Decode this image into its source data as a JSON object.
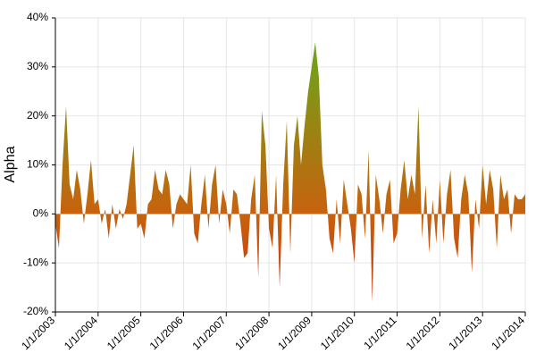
{
  "chart_data": {
    "type": "area",
    "y_label": "Alpha",
    "x": [
      2003,
      2003.083,
      2003.167,
      2003.25,
      2003.333,
      2003.417,
      2003.5,
      2003.583,
      2003.667,
      2003.75,
      2003.833,
      2003.917,
      2004,
      2004.083,
      2004.167,
      2004.25,
      2004.333,
      2004.417,
      2004.5,
      2004.583,
      2004.667,
      2004.75,
      2004.833,
      2004.917,
      2005,
      2005.083,
      2005.167,
      2005.25,
      2005.333,
      2005.417,
      2005.5,
      2005.583,
      2005.667,
      2005.75,
      2005.833,
      2005.917,
      2006,
      2006.083,
      2006.167,
      2006.25,
      2006.333,
      2006.417,
      2006.5,
      2006.583,
      2006.667,
      2006.75,
      2006.833,
      2006.917,
      2007,
      2007.083,
      2007.167,
      2007.25,
      2007.333,
      2007.417,
      2007.5,
      2007.583,
      2007.667,
      2007.75,
      2007.833,
      2007.917,
      2008,
      2008.083,
      2008.167,
      2008.25,
      2008.333,
      2008.417,
      2008.5,
      2008.583,
      2008.667,
      2008.75,
      2008.833,
      2008.917,
      2009,
      2009.083,
      2009.167,
      2009.25,
      2009.333,
      2009.417,
      2009.5,
      2009.583,
      2009.667,
      2009.75,
      2009.833,
      2009.917,
      2010,
      2010.083,
      2010.167,
      2010.25,
      2010.333,
      2010.417,
      2010.5,
      2010.583,
      2010.667,
      2010.75,
      2010.833,
      2010.917,
      2011,
      2011.083,
      2011.167,
      2011.25,
      2011.333,
      2011.417,
      2011.5,
      2011.583,
      2011.667,
      2011.75,
      2011.833,
      2011.917,
      2012,
      2012.083,
      2012.167,
      2012.25,
      2012.333,
      2012.417,
      2012.5,
      2012.583,
      2012.667,
      2012.75,
      2012.833,
      2012.917,
      2013,
      2013.083,
      2013.167,
      2013.25,
      2013.333,
      2013.417,
      2013.5,
      2013.583,
      2013.667,
      2013.75,
      2013.833,
      2013.917,
      2014
    ],
    "values": [
      -2,
      -7,
      10,
      22,
      6,
      3,
      9,
      5,
      -2,
      4,
      11,
      2,
      3,
      -2,
      1,
      -5,
      2,
      -3,
      1,
      -1,
      2,
      8,
      14,
      -3,
      -2,
      -5,
      2,
      3,
      9,
      5,
      4,
      9,
      6,
      -3,
      2,
      4,
      3,
      2,
      10,
      -4,
      -6,
      2,
      8,
      -3,
      6,
      10,
      -2,
      5,
      2,
      -4,
      5,
      4,
      -2,
      -9,
      -8,
      3,
      8,
      -13,
      21,
      14,
      -3,
      -7,
      8,
      -15,
      6,
      19,
      -8,
      14,
      20,
      10,
      18,
      25,
      30,
      35,
      28,
      10,
      5,
      -5,
      -8,
      3,
      -6,
      7,
      2,
      -3,
      -10,
      6,
      4,
      -5,
      13,
      -18,
      8,
      3,
      -4,
      4,
      7,
      -6,
      -4,
      5,
      11,
      3,
      8,
      4,
      22,
      -5,
      6,
      -8,
      3,
      -6,
      7,
      -6,
      4,
      9,
      -5,
      -9,
      3,
      8,
      4,
      -12,
      3,
      -3,
      10,
      2,
      9,
      5,
      -7,
      8,
      3,
      5,
      -4,
      4,
      3,
      3,
      4
    ],
    "gradient": [
      "#6aa61a",
      "#c8620e",
      "#c9360d"
    ],
    "xlim": [
      2003,
      2014
    ],
    "xticks": [
      {
        "value": 2003,
        "label": "1/1/2003"
      },
      {
        "value": 2004,
        "label": "1/1/2004"
      },
      {
        "value": 2005,
        "label": "1/1/2005"
      },
      {
        "value": 2006,
        "label": "1/1/2006"
      },
      {
        "value": 2007,
        "label": "1/1/2007"
      },
      {
        "value": 2008,
        "label": "1/1/2008"
      },
      {
        "value": 2009,
        "label": "1/1/2009"
      },
      {
        "value": 2010,
        "label": "1/1/2010"
      },
      {
        "value": 2011,
        "label": "1/1/2011"
      },
      {
        "value": 2012,
        "label": "1/1/2012"
      },
      {
        "value": 2013,
        "label": "1/1/2013"
      },
      {
        "value": 2014,
        "label": "1/1/2014"
      }
    ],
    "ylim": [
      -20,
      40
    ],
    "yticks": [
      {
        "value": -20,
        "label": "-20%"
      },
      {
        "value": -10,
        "label": "-10%"
      },
      {
        "value": 0,
        "label": "0%"
      },
      {
        "value": 10,
        "label": "10%"
      },
      {
        "value": 20,
        "label": "20%"
      },
      {
        "value": 30,
        "label": "30%"
      },
      {
        "value": 40,
        "label": "40%"
      }
    ],
    "grid": true
  }
}
